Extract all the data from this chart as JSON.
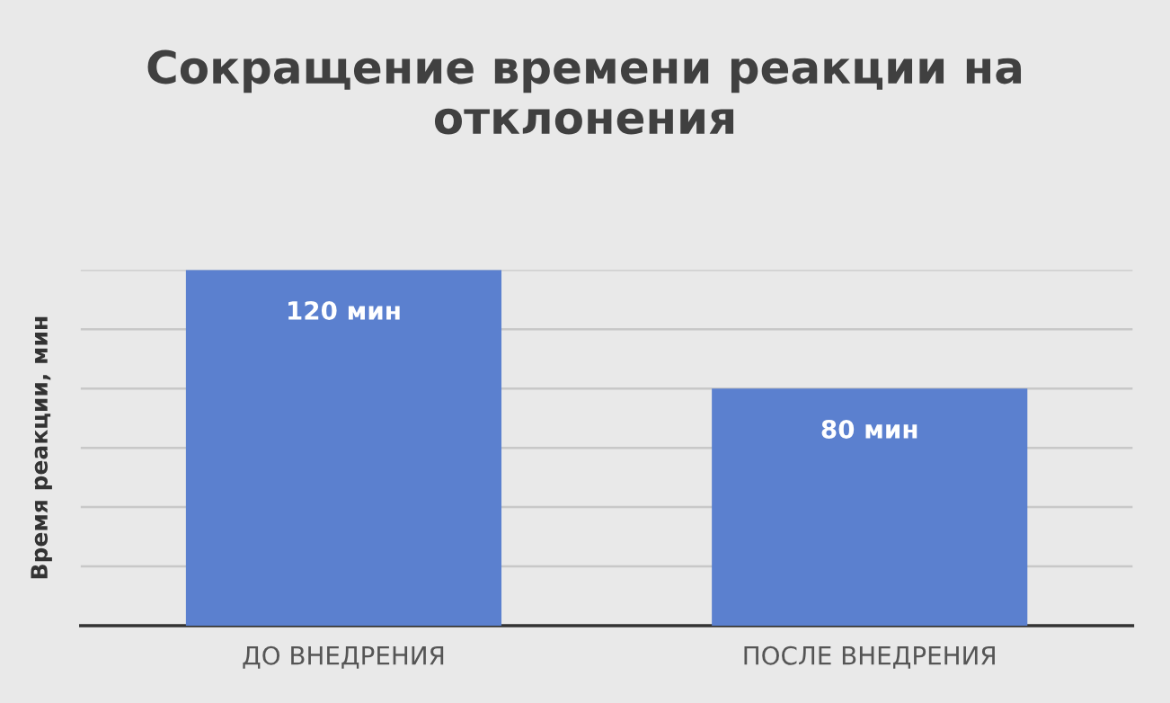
{
  "chart_data": {
    "type": "bar",
    "title": "Сокращение времени реакции на отклонения",
    "ylabel": "Время реакции, мин",
    "categories": [
      "ДО ВНЕДРЕНИЯ",
      "ПОСЛЕ ВНЕДРЕНИЯ"
    ],
    "values": [
      120,
      80
    ],
    "value_labels": [
      "120 мин",
      "80 мин"
    ],
    "color": "#5b80cf",
    "ylim": [
      0,
      120
    ],
    "yticks": [
      {
        "value": 0,
        "label": null
      },
      {
        "value": 20,
        "label": null
      },
      {
        "value": 40,
        "label": null
      },
      {
        "value": 60,
        "label": null
      },
      {
        "value": 80,
        "label": null
      },
      {
        "value": 100,
        "label": null
      },
      {
        "value": 120,
        "label": null
      }
    ],
    "tick_labels": "x",
    "grid": "y"
  }
}
